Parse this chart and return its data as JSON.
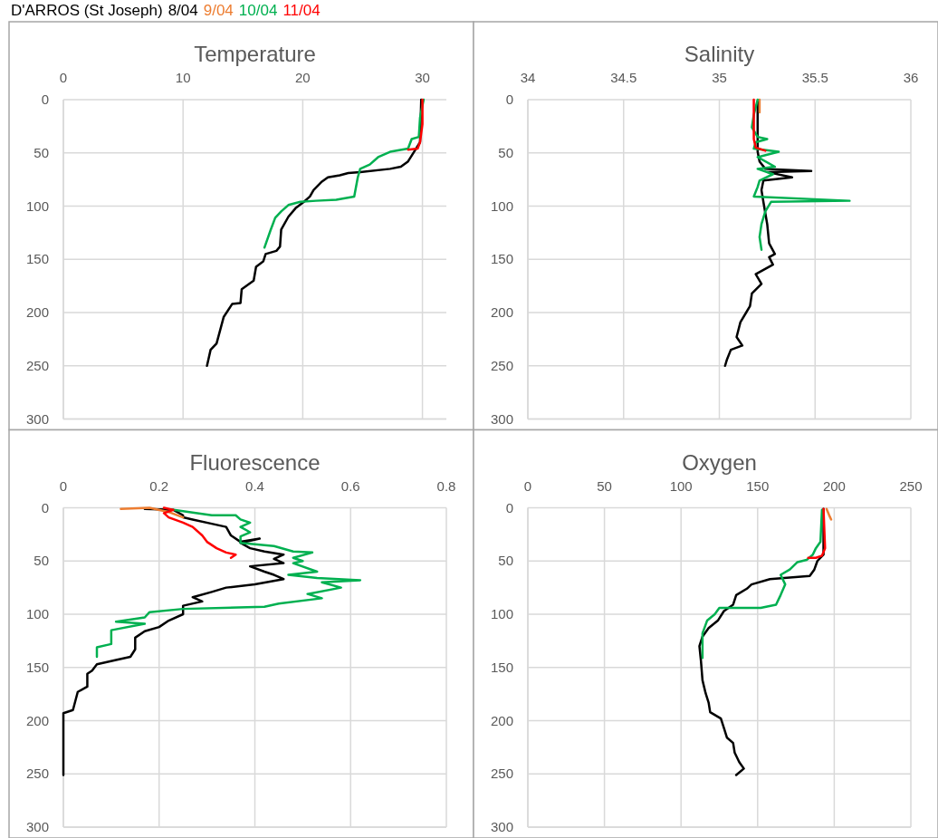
{
  "chart_data": [
    {
      "type": "line",
      "title": "Temperature",
      "grid": true,
      "xlim": [
        0,
        32
      ],
      "xticks": [
        0,
        10,
        20,
        30
      ],
      "ylim": [
        300,
        0
      ],
      "yticks": [
        0,
        50,
        100,
        150,
        200,
        250,
        300
      ],
      "series": [
        {
          "color": "#000000",
          "x": [
            29.9,
            29.8,
            29.3,
            28.8,
            28.2,
            27.3,
            24.8,
            23.8,
            23.1,
            22.1,
            21.6,
            20.9,
            20.6,
            20.1,
            19.4,
            18.8,
            18.2,
            18.1,
            17.8,
            16.9,
            16.7,
            16.1,
            15.9,
            14.9,
            14.8,
            14.1,
            13.4,
            12.8,
            12.3,
            12.0
          ],
          "values": [
            0,
            40,
            49,
            58,
            63,
            65,
            68,
            69,
            71,
            73,
            77,
            85,
            91,
            96,
            102,
            110,
            122,
            138,
            142,
            145,
            152,
            157,
            170,
            178,
            191,
            192,
            204,
            229,
            235,
            250
          ]
        },
        {
          "color": "#00b050",
          "x": [
            30.1,
            29.8,
            29.7,
            29.1,
            28.8,
            27.3,
            26.3,
            25.6,
            24.8,
            24.6,
            24.3,
            22.8,
            21.1,
            19.8,
            18.8,
            18.2,
            17.7,
            17.3,
            16.8
          ],
          "values": [
            0,
            17,
            35,
            37,
            46,
            49,
            54,
            61,
            65,
            73,
            91,
            94,
            95,
            96,
            99,
            105,
            111,
            123,
            139
          ]
        },
        {
          "color": "#ff0000",
          "x": [
            30.0,
            30.0,
            29.8,
            29.6,
            28.8
          ],
          "values": [
            0,
            23,
            40,
            46,
            47
          ]
        }
      ]
    },
    {
      "type": "line",
      "title": "Salinity",
      "grid": true,
      "xlim": [
        34,
        36
      ],
      "xticks": [
        34,
        34.5,
        35,
        35.5,
        36
      ],
      "ylim": [
        300,
        0
      ],
      "yticks": [
        0,
        50,
        100,
        150,
        200,
        250,
        300
      ],
      "series": [
        {
          "color": "#000000",
          "x": [
            35.2,
            35.2,
            35.21,
            35.24,
            35.48,
            35.25,
            35.38,
            35.23,
            35.22,
            35.23,
            35.25,
            35.26,
            35.29,
            35.26,
            35.28,
            35.19,
            35.22,
            35.17,
            35.16,
            35.14,
            35.11,
            35.09,
            35.12,
            35.06,
            35.04,
            35.03
          ],
          "values": [
            2,
            49,
            58,
            65,
            67,
            68,
            73,
            76,
            85,
            96,
            117,
            135,
            145,
            148,
            155,
            164,
            173,
            182,
            194,
            200,
            209,
            223,
            231,
            235,
            244,
            250
          ]
        },
        {
          "color": "#ed7d31",
          "x": [
            35.21,
            35.21
          ],
          "values": [
            0,
            12
          ]
        },
        {
          "color": "#00b050",
          "x": [
            35.2,
            35.18,
            35.17,
            35.2,
            35.25,
            35.19,
            35.18,
            35.31,
            35.2,
            35.29,
            35.2,
            35.28,
            35.21,
            35.2,
            35.18,
            35.68,
            35.27,
            35.24,
            35.22,
            35.21,
            35.22
          ],
          "values": [
            0,
            14,
            26,
            35,
            37,
            40,
            46,
            49,
            54,
            63,
            65,
            70,
            76,
            82,
            91,
            95,
            96,
            105,
            117,
            129,
            141
          ]
        },
        {
          "color": "#ff0000",
          "x": [
            35.18,
            35.18,
            35.19,
            35.24
          ],
          "values": [
            0,
            37,
            45,
            48
          ]
        }
      ]
    },
    {
      "type": "line",
      "title": "Fluorescence",
      "legend_title": "D'ARROS (St Joseph)",
      "legend": "top left",
      "grid": true,
      "xlim": [
        0,
        0.8
      ],
      "xticks": [
        0,
        0.2,
        0.4,
        0.6,
        0.8
      ],
      "ylim": [
        300,
        0
      ],
      "yticks": [
        0,
        50,
        100,
        150,
        200,
        250,
        300
      ],
      "series": [
        {
          "name": "8/04",
          "color": "#000000",
          "x": [
            0.17,
            0.23,
            0.25,
            0.25,
            0.27,
            0.31,
            0.34,
            0.35,
            0.37,
            0.41,
            0.37,
            0.39,
            0.42,
            0.46,
            0.44,
            0.46,
            0.39,
            0.42,
            0.44,
            0.46,
            0.4,
            0.34,
            0.31,
            0.27,
            0.29,
            0.25,
            0.25,
            0.22,
            0.2,
            0.17,
            0.15,
            0.15,
            0.14,
            0.11,
            0.07,
            0.06,
            0.05,
            0.05,
            0.03,
            0.02,
            0,
            0
          ],
          "values": [
            1,
            2,
            7,
            9,
            11,
            15,
            18,
            26,
            32,
            29,
            33,
            38,
            41,
            44,
            48,
            52,
            55,
            60,
            63,
            67,
            72,
            75,
            79,
            84,
            88,
            92,
            100,
            106,
            112,
            116,
            122,
            133,
            140,
            143,
            147,
            153,
            156,
            168,
            173,
            190,
            193,
            251
          ]
        },
        {
          "name": "9/04",
          "color": "#ed7d31",
          "x": [
            0.12,
            0.18,
            0.22,
            0.25
          ],
          "values": [
            1,
            0,
            4,
            9
          ]
        },
        {
          "name": "10/04",
          "color": "#00b050",
          "x": [
            0.23,
            0.31,
            0.36,
            0.37,
            0.39,
            0.37,
            0.39,
            0.37,
            0.37,
            0.44,
            0.48,
            0.52,
            0.48,
            0.5,
            0.48,
            0.53,
            0.47,
            0.53,
            0.62,
            0.54,
            0.58,
            0.51,
            0.54,
            0.45,
            0.42,
            0.25,
            0.18,
            0.17,
            0.11,
            0.17,
            0.1,
            0.1,
            0.07,
            0.07
          ],
          "values": [
            2,
            7,
            7,
            11,
            14,
            18,
            23,
            27,
            33,
            36,
            41,
            42,
            47,
            50,
            52,
            60,
            63,
            66,
            68,
            70,
            75,
            81,
            85,
            90,
            93,
            95,
            98,
            103,
            107,
            109,
            115,
            128,
            131,
            140
          ]
        },
        {
          "name": "11/04",
          "color": "#ff0000",
          "x": [
            0.21,
            0.23,
            0.21,
            0.22,
            0.25,
            0.27,
            0.29,
            0.3,
            0.32,
            0.34,
            0.36,
            0.35
          ],
          "values": [
            0,
            2,
            5,
            9,
            14,
            18,
            26,
            32,
            38,
            42,
            44,
            47
          ]
        }
      ]
    },
    {
      "type": "line",
      "title": "Oxygen",
      "grid": true,
      "xlim": [
        0,
        250
      ],
      "xticks": [
        0,
        50,
        100,
        150,
        200,
        250
      ],
      "ylim": [
        300,
        0
      ],
      "yticks": [
        0,
        50,
        100,
        150,
        200,
        250,
        300
      ],
      "series": [
        {
          "color": "#000000",
          "x": [
            193,
            193,
            189,
            187,
            184,
            158,
            146,
            143,
            136,
            134,
            128,
            124,
            118,
            114,
            112,
            113,
            114,
            116,
            118,
            119,
            126,
            128,
            130,
            134,
            135,
            138,
            141,
            136
          ],
          "values": [
            1,
            44,
            50,
            58,
            64,
            67,
            72,
            76,
            82,
            91,
            97,
            106,
            113,
            121,
            130,
            144,
            162,
            174,
            183,
            192,
            198,
            207,
            216,
            221,
            230,
            239,
            245,
            251
          ]
        },
        {
          "color": "#ed7d31",
          "x": [
            195,
            197,
            198
          ],
          "values": [
            1,
            8,
            11
          ]
        },
        {
          "color": "#00b050",
          "x": [
            192,
            191,
            188,
            186,
            182,
            176,
            171,
            165,
            168,
            165,
            162,
            152,
            125,
            122,
            117,
            114,
            114
          ],
          "values": [
            2,
            32,
            38,
            44,
            49,
            51,
            58,
            63,
            72,
            82,
            91,
            94,
            94,
            100,
            106,
            118,
            141
          ]
        },
        {
          "color": "#ff0000",
          "x": [
            193,
            194,
            192,
            188,
            183
          ],
          "values": [
            1,
            38,
            45,
            47,
            47
          ]
        }
      ]
    }
  ]
}
